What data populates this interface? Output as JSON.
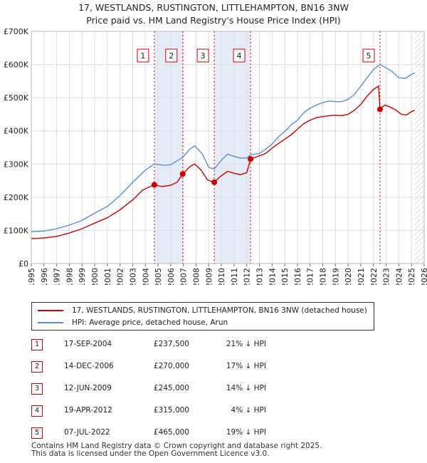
{
  "title_line1": "17, WESTLANDS, RUSTINGTON, LITTLEHAMPTON, BN16 3NW",
  "title_line2": "Price paid vs. HM Land Registry's House Price Index (HPI)",
  "colors": {
    "property": "#cc0000",
    "hpi": "#5b8fd0",
    "shade": "#e6ecf7",
    "grid": "#dddddd",
    "future": "#d0d0d0"
  },
  "chart_data": {
    "type": "line",
    "x_range": [
      1995.0,
      2026.0
    ],
    "y_range": [
      0,
      700000
    ],
    "y_ticks": [
      {
        "value": 0,
        "label": "£0"
      },
      {
        "value": 100000,
        "label": "£100K"
      },
      {
        "value": 200000,
        "label": "£200K"
      },
      {
        "value": 300000,
        "label": "£300K"
      },
      {
        "value": 400000,
        "label": "£400K"
      },
      {
        "value": 500000,
        "label": "£500K"
      },
      {
        "value": 600000,
        "label": "£600K"
      },
      {
        "value": 700000,
        "label": "£700K"
      }
    ],
    "x_ticks": [
      "1995",
      "1996",
      "1997",
      "1998",
      "1999",
      "2000",
      "2001",
      "2002",
      "2003",
      "2004",
      "2005",
      "2006",
      "2007",
      "2008",
      "2009",
      "2010",
      "2011",
      "2012",
      "2013",
      "2014",
      "2015",
      "2016",
      "2017",
      "2018",
      "2019",
      "2020",
      "2021",
      "2022",
      "2023",
      "2024",
      "2025",
      "2026"
    ],
    "data_end": 2025.25,
    "shaded_periods": [
      [
        2004.71,
        2006.95
      ],
      [
        2009.44,
        2012.3
      ]
    ],
    "series": [
      {
        "name": "17, WESTLANDS, RUSTINGTON, LITTLEHAMPTON, BN16 3NW (detached house)",
        "key": "property",
        "points": [
          [
            1995.0,
            75000
          ],
          [
            1996.0,
            77000
          ],
          [
            1997.0,
            82000
          ],
          [
            1998.0,
            92000
          ],
          [
            1999.0,
            105000
          ],
          [
            2000.0,
            122000
          ],
          [
            2001.0,
            138000
          ],
          [
            2002.0,
            162000
          ],
          [
            2003.0,
            192000
          ],
          [
            2003.8,
            222000
          ],
          [
            2004.71,
            237500
          ],
          [
            2005.3,
            232000
          ],
          [
            2006.0,
            236000
          ],
          [
            2006.5,
            245000
          ],
          [
            2006.95,
            270000
          ],
          [
            2007.5,
            292000
          ],
          [
            2007.9,
            300000
          ],
          [
            2008.4,
            282000
          ],
          [
            2008.9,
            252000
          ],
          [
            2009.44,
            245000
          ],
          [
            2009.9,
            262000
          ],
          [
            2010.5,
            278000
          ],
          [
            2011.0,
            272000
          ],
          [
            2011.5,
            268000
          ],
          [
            2012.0,
            274000
          ],
          [
            2012.3,
            315000
          ],
          [
            2012.8,
            322000
          ],
          [
            2013.5,
            332000
          ],
          [
            2014.0,
            348000
          ],
          [
            2014.5,
            362000
          ],
          [
            2015.0,
            375000
          ],
          [
            2015.5,
            388000
          ],
          [
            2016.0,
            405000
          ],
          [
            2016.5,
            422000
          ],
          [
            2017.0,
            432000
          ],
          [
            2017.5,
            440000
          ],
          [
            2018.0,
            443000
          ],
          [
            2018.5,
            446000
          ],
          [
            2019.0,
            447000
          ],
          [
            2019.5,
            446000
          ],
          [
            2020.0,
            450000
          ],
          [
            2020.5,
            462000
          ],
          [
            2021.0,
            480000
          ],
          [
            2021.5,
            505000
          ],
          [
            2022.0,
            525000
          ],
          [
            2022.4,
            535000
          ],
          [
            2022.52,
            465000
          ],
          [
            2022.9,
            478000
          ],
          [
            2023.3,
            472000
          ],
          [
            2023.8,
            462000
          ],
          [
            2024.2,
            450000
          ],
          [
            2024.6,
            448000
          ],
          [
            2025.0,
            458000
          ],
          [
            2025.25,
            462000
          ]
        ]
      },
      {
        "name": "HPI: Average price, detached house, Arun",
        "key": "hpi",
        "points": [
          [
            1995.0,
            96000
          ],
          [
            1996.0,
            98000
          ],
          [
            1997.0,
            105000
          ],
          [
            1998.0,
            116000
          ],
          [
            1999.0,
            130000
          ],
          [
            2000.0,
            152000
          ],
          [
            2001.0,
            172000
          ],
          [
            2002.0,
            205000
          ],
          [
            2003.0,
            245000
          ],
          [
            2004.0,
            282000
          ],
          [
            2004.71,
            300000
          ],
          [
            2005.5,
            296000
          ],
          [
            2006.0,
            298000
          ],
          [
            2006.95,
            320000
          ],
          [
            2007.5,
            345000
          ],
          [
            2007.9,
            355000
          ],
          [
            2008.5,
            330000
          ],
          [
            2009.0,
            290000
          ],
          [
            2009.44,
            285000
          ],
          [
            2010.0,
            312000
          ],
          [
            2010.5,
            330000
          ],
          [
            2011.0,
            323000
          ],
          [
            2011.5,
            318000
          ],
          [
            2012.0,
            318000
          ],
          [
            2012.3,
            328000
          ],
          [
            2013.0,
            332000
          ],
          [
            2013.5,
            345000
          ],
          [
            2014.0,
            360000
          ],
          [
            2014.5,
            382000
          ],
          [
            2015.0,
            398000
          ],
          [
            2015.5,
            418000
          ],
          [
            2016.0,
            432000
          ],
          [
            2016.5,
            455000
          ],
          [
            2017.0,
            468000
          ],
          [
            2017.5,
            478000
          ],
          [
            2018.0,
            485000
          ],
          [
            2018.5,
            490000
          ],
          [
            2019.0,
            488000
          ],
          [
            2019.5,
            488000
          ],
          [
            2020.0,
            495000
          ],
          [
            2020.5,
            510000
          ],
          [
            2021.0,
            535000
          ],
          [
            2021.5,
            560000
          ],
          [
            2022.0,
            585000
          ],
          [
            2022.52,
            600000
          ],
          [
            2023.0,
            590000
          ],
          [
            2023.5,
            578000
          ],
          [
            2024.0,
            560000
          ],
          [
            2024.5,
            558000
          ],
          [
            2025.0,
            570000
          ],
          [
            2025.25,
            575000
          ]
        ]
      }
    ],
    "transactions": [
      {
        "n": "1",
        "x": 2004.71,
        "y": 237500,
        "date": "17-SEP-2004",
        "price": "£237,500",
        "diff": "21% ↓ HPI"
      },
      {
        "n": "2",
        "x": 2006.95,
        "y": 270000,
        "date": "14-DEC-2006",
        "price": "£270,000",
        "diff": "17% ↓ HPI"
      },
      {
        "n": "3",
        "x": 2009.44,
        "y": 245000,
        "date": "12-JUN-2009",
        "price": "£245,000",
        "diff": "14% ↓ HPI"
      },
      {
        "n": "4",
        "x": 2012.3,
        "y": 315000,
        "date": "19-APR-2012",
        "price": "£315,000",
        "diff": "4% ↓ HPI"
      },
      {
        "n": "5",
        "x": 2022.52,
        "y": 465000,
        "date": "07-JUL-2022",
        "price": "£465,000",
        "diff": "19% ↓ HPI"
      }
    ]
  },
  "legend": {
    "property_label": "17, WESTLANDS, RUSTINGTON, LITTLEHAMPTON, BN16 3NW (detached house)",
    "hpi_label": "HPI: Average price, detached house, Arun"
  },
  "footer": {
    "line1": "Contains HM Land Registry data © Crown copyright and database right 2025.",
    "line2": "This data is licensed under the Open Government Licence v3.0."
  }
}
